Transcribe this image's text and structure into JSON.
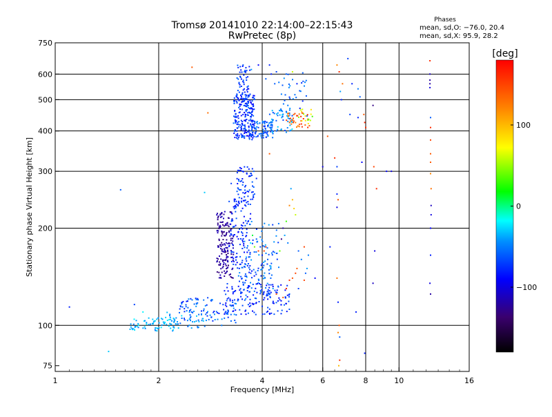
{
  "chart_data": {
    "type": "scatter",
    "title": "Tromsø 20141010 22:14:00–22:15:43",
    "subtitle": "RwPretec (8p)",
    "xlabel": "Frequency [MHz]",
    "ylabel": "Stationary phase Virtual Height [km]",
    "x_scale": "log",
    "y_scale": "log",
    "xlim": [
      1,
      16
    ],
    "ylim": [
      72,
      750
    ],
    "x_ticks": [
      1,
      2,
      4,
      6,
      8,
      10,
      16
    ],
    "x_tick_labels": [
      "1",
      "2",
      "4",
      "6",
      "8",
      "10",
      "16"
    ],
    "y_ticks": [
      75,
      100,
      200,
      300,
      400,
      500,
      600,
      750
    ],
    "y_tick_labels": [
      "75",
      "100",
      "200",
      "300",
      "400",
      "500",
      "600",
      "750"
    ],
    "grid": true,
    "stats": {
      "heading": "Phases",
      "line1": "mean, sd,O: −76.0, 20.4",
      "line2": "mean, sd,X:  95.9, 28.2"
    },
    "colorbar": {
      "label": "[deg]",
      "range": [
        -180,
        180
      ],
      "ticks": [
        100,
        0,
        -100
      ],
      "tick_labels": [
        "100",
        "0",
        "−100"
      ]
    },
    "points": [
      {
        "x": 1.1,
        "y": 114,
        "p": -80
      },
      {
        "x": 1.43,
        "y": 83,
        "p": -30
      },
      {
        "x": 1.55,
        "y": 263,
        "p": -60
      },
      {
        "x": 1.7,
        "y": 116,
        "p": -70
      },
      {
        "x": 1.8,
        "y": 110,
        "p": -20
      },
      {
        "x": 2.5,
        "y": 630,
        "p": 140
      },
      {
        "x": 2.78,
        "y": 455,
        "p": 130
      },
      {
        "x": 2.72,
        "y": 258,
        "p": -30
      },
      {
        "x": 3.05,
        "y": 100,
        "p": -50
      },
      {
        "x": 3.35,
        "y": 102,
        "p": -60
      },
      {
        "x": 3.45,
        "y": 590,
        "p": -80
      },
      {
        "x": 3.48,
        "y": 550,
        "p": -75
      },
      {
        "x": 3.5,
        "y": 520,
        "p": -70
      },
      {
        "x": 3.52,
        "y": 640,
        "p": -60
      },
      {
        "x": 3.55,
        "y": 610,
        "p": -50
      },
      {
        "x": 3.6,
        "y": 575,
        "p": -70
      },
      {
        "x": 3.65,
        "y": 540,
        "p": -85
      },
      {
        "x": 3.72,
        "y": 620,
        "p": -40
      },
      {
        "x": 3.9,
        "y": 640,
        "p": -90
      },
      {
        "x": 4.1,
        "y": 580,
        "p": -60
      },
      {
        "x": 4.2,
        "y": 640,
        "p": -80
      },
      {
        "x": 4.4,
        "y": 610,
        "p": -70
      },
      {
        "x": 4.55,
        "y": 520,
        "p": -50
      },
      {
        "x": 4.7,
        "y": 600,
        "p": -60
      },
      {
        "x": 4.9,
        "y": 610,
        "p": 60
      },
      {
        "x": 5.05,
        "y": 560,
        "p": -80
      },
      {
        "x": 5.15,
        "y": 470,
        "p": -80
      },
      {
        "x": 5.25,
        "y": 605,
        "p": -60
      },
      {
        "x": 5.4,
        "y": 445,
        "p": -60
      },
      {
        "x": 3.25,
        "y": 275,
        "p": -70
      },
      {
        "x": 3.32,
        "y": 230,
        "p": -80
      },
      {
        "x": 3.38,
        "y": 260,
        "p": -60
      },
      {
        "x": 3.42,
        "y": 280,
        "p": -50
      },
      {
        "x": 3.7,
        "y": 290,
        "p": -60
      },
      {
        "x": 3.75,
        "y": 270,
        "p": -70
      },
      {
        "x": 3.8,
        "y": 255,
        "p": -60
      },
      {
        "x": 3.78,
        "y": 300,
        "p": -60
      },
      {
        "x": 3.6,
        "y": 240,
        "p": -70
      },
      {
        "x": 3.85,
        "y": 285,
        "p": -80
      },
      {
        "x": 4.2,
        "y": 340,
        "p": 140
      },
      {
        "x": 4.8,
        "y": 235,
        "p": 120
      },
      {
        "x": 4.9,
        "y": 245,
        "p": 100
      },
      {
        "x": 4.95,
        "y": 230,
        "p": 90
      },
      {
        "x": 4.7,
        "y": 210,
        "p": 30
      },
      {
        "x": 5.0,
        "y": 220,
        "p": 60
      },
      {
        "x": 4.85,
        "y": 265,
        "p": -40
      },
      {
        "x": 4.6,
        "y": 200,
        "p": -120
      },
      {
        "x": 4.55,
        "y": 185,
        "p": -130
      },
      {
        "x": 4.5,
        "y": 170,
        "p": 40
      },
      {
        "x": 4.65,
        "y": 190,
        "p": -40
      },
      {
        "x": 4.75,
        "y": 180,
        "p": -50
      },
      {
        "x": 3.85,
        "y": 185,
        "p": -60
      },
      {
        "x": 3.95,
        "y": 175,
        "p": -70
      },
      {
        "x": 4.0,
        "y": 165,
        "p": -80
      },
      {
        "x": 4.05,
        "y": 170,
        "p": 150
      },
      {
        "x": 4.1,
        "y": 175,
        "p": 160
      },
      {
        "x": 3.9,
        "y": 170,
        "p": 150
      },
      {
        "x": 4.15,
        "y": 160,
        "p": -60
      },
      {
        "x": 3.7,
        "y": 180,
        "p": -20
      },
      {
        "x": 3.75,
        "y": 190,
        "p": 10
      },
      {
        "x": 3.8,
        "y": 175,
        "p": 40
      },
      {
        "x": 5.0,
        "y": 145,
        "p": 150
      },
      {
        "x": 4.9,
        "y": 140,
        "p": 145
      },
      {
        "x": 5.05,
        "y": 150,
        "p": 140
      },
      {
        "x": 4.8,
        "y": 138,
        "p": 160
      },
      {
        "x": 4.7,
        "y": 130,
        "p": 165
      },
      {
        "x": 5.3,
        "y": 138,
        "p": 150
      },
      {
        "x": 5.35,
        "y": 145,
        "p": -60
      },
      {
        "x": 5.4,
        "y": 150,
        "p": -40
      },
      {
        "x": 5.2,
        "y": 160,
        "p": -50
      },
      {
        "x": 5.1,
        "y": 170,
        "p": -60
      },
      {
        "x": 5.3,
        "y": 175,
        "p": 150
      },
      {
        "x": 5.45,
        "y": 165,
        "p": -50
      },
      {
        "x": 4.4,
        "y": 125,
        "p": 150
      },
      {
        "x": 4.6,
        "y": 122,
        "p": 140
      },
      {
        "x": 4.3,
        "y": 130,
        "p": -40
      },
      {
        "x": 4.5,
        "y": 120,
        "p": -70
      },
      {
        "x": 4.8,
        "y": 125,
        "p": -60
      },
      {
        "x": 5.1,
        "y": 130,
        "p": -70
      },
      {
        "x": 5.7,
        "y": 140,
        "p": -90
      },
      {
        "x": 6.3,
        "y": 175,
        "p": -80
      },
      {
        "x": 6.6,
        "y": 140,
        "p": 130
      },
      {
        "x": 6.65,
        "y": 118,
        "p": -80
      },
      {
        "x": 6.6,
        "y": 255,
        "p": -80
      },
      {
        "x": 6.65,
        "y": 245,
        "p": 140
      },
      {
        "x": 6.6,
        "y": 232,
        "p": -100
      },
      {
        "x": 6.5,
        "y": 330,
        "p": 160
      },
      {
        "x": 6.6,
        "y": 310,
        "p": -70
      },
      {
        "x": 6.7,
        "y": 100,
        "p": 140
      },
      {
        "x": 6.65,
        "y": 95,
        "p": 120
      },
      {
        "x": 6.72,
        "y": 78,
        "p": 160
      },
      {
        "x": 6.68,
        "y": 75,
        "p": 100
      },
      {
        "x": 6.72,
        "y": 92,
        "p": -60
      },
      {
        "x": 6.2,
        "y": 385,
        "p": 140
      },
      {
        "x": 6.0,
        "y": 310,
        "p": -100
      },
      {
        "x": 6.6,
        "y": 640,
        "p": 120
      },
      {
        "x": 6.7,
        "y": 610,
        "p": 160
      },
      {
        "x": 6.75,
        "y": 530,
        "p": -40
      },
      {
        "x": 6.8,
        "y": 500,
        "p": -80
      },
      {
        "x": 6.85,
        "y": 560,
        "p": 130
      },
      {
        "x": 7.1,
        "y": 670,
        "p": -70
      },
      {
        "x": 7.2,
        "y": 450,
        "p": -70
      },
      {
        "x": 7.3,
        "y": 560,
        "p": -80
      },
      {
        "x": 7.6,
        "y": 440,
        "p": -80
      },
      {
        "x": 7.7,
        "y": 510,
        "p": -60
      },
      {
        "x": 7.9,
        "y": 450,
        "p": 140
      },
      {
        "x": 7.95,
        "y": 425,
        "p": 160
      },
      {
        "x": 8.0,
        "y": 410,
        "p": 160
      },
      {
        "x": 7.6,
        "y": 540,
        "p": -50
      },
      {
        "x": 7.8,
        "y": 320,
        "p": -90
      },
      {
        "x": 7.95,
        "y": 82,
        "p": -80
      },
      {
        "x": 7.5,
        "y": 110,
        "p": -80
      },
      {
        "x": 8.4,
        "y": 480,
        "p": -130
      },
      {
        "x": 8.45,
        "y": 310,
        "p": 150
      },
      {
        "x": 8.6,
        "y": 265,
        "p": 160
      },
      {
        "x": 8.5,
        "y": 170,
        "p": -100
      },
      {
        "x": 8.4,
        "y": 135,
        "p": -110
      },
      {
        "x": 9.2,
        "y": 300,
        "p": -90
      },
      {
        "x": 9.5,
        "y": 300,
        "p": -100
      },
      {
        "x": 12.3,
        "y": 660,
        "p": 160
      },
      {
        "x": 12.3,
        "y": 600,
        "p": -110
      },
      {
        "x": 12.3,
        "y": 575,
        "p": -120
      },
      {
        "x": 12.3,
        "y": 560,
        "p": -120
      },
      {
        "x": 12.3,
        "y": 545,
        "p": -100
      },
      {
        "x": 12.35,
        "y": 440,
        "p": -60
      },
      {
        "x": 12.35,
        "y": 410,
        "p": 160
      },
      {
        "x": 12.35,
        "y": 375,
        "p": 150
      },
      {
        "x": 12.35,
        "y": 340,
        "p": 140
      },
      {
        "x": 12.35,
        "y": 320,
        "p": 140
      },
      {
        "x": 12.35,
        "y": 295,
        "p": 120
      },
      {
        "x": 12.4,
        "y": 265,
        "p": 130
      },
      {
        "x": 12.4,
        "y": 235,
        "p": -110
      },
      {
        "x": 12.4,
        "y": 220,
        "p": -100
      },
      {
        "x": 12.35,
        "y": 200,
        "p": -90
      },
      {
        "x": 12.35,
        "y": 165,
        "p": -80
      },
      {
        "x": 12.3,
        "y": 135,
        "p": -100
      },
      {
        "x": 12.35,
        "y": 125,
        "p": -120
      },
      {
        "x": 4.25,
        "y": 600,
        "p": -80
      },
      {
        "x": 4.35,
        "y": 560,
        "p": -60
      },
      {
        "x": 4.75,
        "y": 480,
        "p": -50
      }
    ],
    "clusters": [
      {
        "fmin": 3.3,
        "fmax": 3.8,
        "hmin": 375,
        "hmax": 520,
        "n": 240,
        "pmin": -95,
        "pmax": -55
      },
      {
        "fmin": 3.38,
        "fmax": 3.7,
        "hmin": 500,
        "hmax": 640,
        "n": 45,
        "pmin": -90,
        "pmax": -55
      },
      {
        "fmin": 3.8,
        "fmax": 4.3,
        "hmin": 380,
        "hmax": 430,
        "n": 70,
        "pmin": -80,
        "pmax": -45
      },
      {
        "fmin": 4.2,
        "fmax": 4.9,
        "hmin": 395,
        "hmax": 470,
        "n": 60,
        "pmin": -70,
        "pmax": -25
      },
      {
        "fmin": 4.7,
        "fmax": 5.5,
        "hmin": 410,
        "hmax": 455,
        "n": 35,
        "pmin": 120,
        "pmax": 165
      },
      {
        "fmin": 5.1,
        "fmax": 5.6,
        "hmin": 420,
        "hmax": 470,
        "n": 15,
        "pmin": 30,
        "pmax": 90
      },
      {
        "fmin": 4.4,
        "fmax": 5.4,
        "hmin": 480,
        "hmax": 600,
        "n": 25,
        "pmin": -80,
        "pmax": -40
      },
      {
        "fmin": 3.38,
        "fmax": 3.78,
        "hmin": 240,
        "hmax": 310,
        "n": 60,
        "pmin": -90,
        "pmax": -55
      },
      {
        "fmin": 2.95,
        "fmax": 3.3,
        "hmin": 140,
        "hmax": 225,
        "n": 170,
        "pmin": -135,
        "pmax": -110
      },
      {
        "fmin": 3.2,
        "fmax": 3.7,
        "hmin": 150,
        "hmax": 250,
        "n": 110,
        "pmin": -95,
        "pmax": -60
      },
      {
        "fmin": 3.4,
        "fmax": 4.3,
        "hmin": 120,
        "hmax": 160,
        "n": 85,
        "pmin": -85,
        "pmax": -40
      },
      {
        "fmin": 3.5,
        "fmax": 4.5,
        "hmin": 140,
        "hmax": 210,
        "n": 55,
        "pmin": -75,
        "pmax": -35
      },
      {
        "fmin": 2.3,
        "fmax": 3.4,
        "hmin": 103,
        "hmax": 122,
        "n": 100,
        "pmin": -85,
        "pmax": -40
      },
      {
        "fmin": 3.1,
        "fmax": 4.8,
        "hmin": 108,
        "hmax": 135,
        "n": 130,
        "pmin": -95,
        "pmax": -55
      },
      {
        "fmin": 1.65,
        "fmax": 2.3,
        "hmin": 96,
        "hmax": 106,
        "n": 75,
        "pmin": -50,
        "pmax": -20
      },
      {
        "fmin": 2.1,
        "fmax": 2.8,
        "hmin": 98,
        "hmax": 110,
        "n": 35,
        "pmin": -60,
        "pmax": -25
      }
    ]
  }
}
